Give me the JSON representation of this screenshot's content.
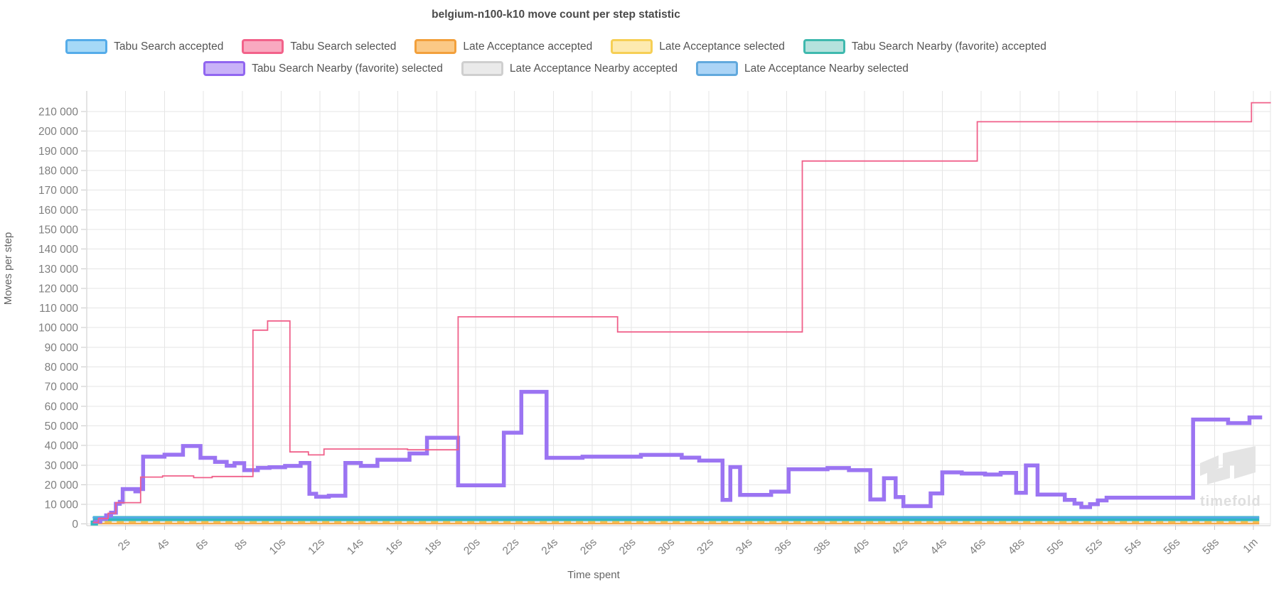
{
  "title": "belgium-n100-k10 move count per step statistic",
  "watermark": {
    "text": "timefold"
  },
  "legend": {
    "rows": [
      [
        {
          "key": "ts_accepted",
          "label": "Tabu Search accepted",
          "fill": "#a6d9f7",
          "border": "#55ace9"
        },
        {
          "key": "ts_selected",
          "label": "Tabu Search selected",
          "fill": "#f9a9c0",
          "border": "#f2628a"
        },
        {
          "key": "la_accepted",
          "label": "Late Acceptance accepted",
          "fill": "#fbc986",
          "border": "#f2a03c"
        },
        {
          "key": "la_selected",
          "label": "Late Acceptance selected",
          "fill": "#fdeab0",
          "border": "#f6cf55"
        },
        {
          "key": "tsn_accepted",
          "label": "Tabu Search Nearby (favorite) accepted",
          "fill": "#b5e2dd",
          "border": "#3fb9ae"
        }
      ],
      [
        {
          "key": "tsn_selected",
          "label": "Tabu Search Nearby (favorite) selected",
          "fill": "#c9b2f8",
          "border": "#9166f0"
        },
        {
          "key": "lan_accepted",
          "label": "Late Acceptance Nearby accepted",
          "fill": "#eaeaea",
          "border": "#cfcfcf"
        },
        {
          "key": "lan_selected",
          "label": "Late Acceptance Nearby selected",
          "fill": "#abd4f6",
          "border": "#62a9dd"
        }
      ]
    ]
  },
  "axes": {
    "x": {
      "title": "Time spent",
      "min": 0,
      "max": 61,
      "ticks": [
        {
          "t": 2,
          "label": "2s"
        },
        {
          "t": 4,
          "label": "4s"
        },
        {
          "t": 6,
          "label": "6s"
        },
        {
          "t": 8,
          "label": "8s"
        },
        {
          "t": 10,
          "label": "10s"
        },
        {
          "t": 12,
          "label": "12s"
        },
        {
          "t": 14,
          "label": "14s"
        },
        {
          "t": 16,
          "label": "16s"
        },
        {
          "t": 18,
          "label": "18s"
        },
        {
          "t": 20,
          "label": "20s"
        },
        {
          "t": 22,
          "label": "22s"
        },
        {
          "t": 24,
          "label": "24s"
        },
        {
          "t": 26,
          "label": "26s"
        },
        {
          "t": 28,
          "label": "28s"
        },
        {
          "t": 30,
          "label": "30s"
        },
        {
          "t": 32,
          "label": "32s"
        },
        {
          "t": 34,
          "label": "34s"
        },
        {
          "t": 36,
          "label": "36s"
        },
        {
          "t": 38,
          "label": "38s"
        },
        {
          "t": 40,
          "label": "40s"
        },
        {
          "t": 42,
          "label": "42s"
        },
        {
          "t": 44,
          "label": "44s"
        },
        {
          "t": 46,
          "label": "46s"
        },
        {
          "t": 48,
          "label": "48s"
        },
        {
          "t": 50,
          "label": "50s"
        },
        {
          "t": 52,
          "label": "52s"
        },
        {
          "t": 54,
          "label": "54s"
        },
        {
          "t": 56,
          "label": "56s"
        },
        {
          "t": 58,
          "label": "58s"
        },
        {
          "t": 60,
          "label": "1m"
        }
      ]
    },
    "y": {
      "title": "Moves per step",
      "min": 0,
      "max": 220000,
      "ticks": [
        {
          "v": 0,
          "label": "0"
        },
        {
          "v": 10000,
          "label": "10 000"
        },
        {
          "v": 20000,
          "label": "20 000"
        },
        {
          "v": 30000,
          "label": "30 000"
        },
        {
          "v": 40000,
          "label": "40 000"
        },
        {
          "v": 50000,
          "label": "50 000"
        },
        {
          "v": 60000,
          "label": "60 000"
        },
        {
          "v": 70000,
          "label": "70 000"
        },
        {
          "v": 80000,
          "label": "80 000"
        },
        {
          "v": 90000,
          "label": "90 000"
        },
        {
          "v": 100000,
          "label": "100 000"
        },
        {
          "v": 110000,
          "label": "110 000"
        },
        {
          "v": 120000,
          "label": "120 000"
        },
        {
          "v": 130000,
          "label": "130 000"
        },
        {
          "v": 140000,
          "label": "140 000"
        },
        {
          "v": 150000,
          "label": "150 000"
        },
        {
          "v": 160000,
          "label": "160 000"
        },
        {
          "v": 170000,
          "label": "170 000"
        },
        {
          "v": 180000,
          "label": "180 000"
        },
        {
          "v": 190000,
          "label": "190 000"
        },
        {
          "v": 200000,
          "label": "200 000"
        },
        {
          "v": 210000,
          "label": "210 000"
        }
      ]
    }
  },
  "chart_data": {
    "type": "line",
    "subtype": "step-after",
    "title": "belgium-n100-k10 move count per step statistic",
    "xlabel": "Time spent",
    "ylabel": "Moves per step",
    "x_unit": "seconds",
    "xlim": [
      0,
      61
    ],
    "ylim": [
      0,
      220000
    ],
    "grid": true,
    "legend_position": "top",
    "series": [
      {
        "key": "lan_accepted",
        "name": "Late Acceptance Nearby accepted",
        "color": "#dcdcdc",
        "width": 2,
        "points": [
          [
            0.3,
            1500
          ],
          [
            60.3,
            1500
          ]
        ]
      },
      {
        "key": "ts_accepted",
        "name": "Tabu Search accepted",
        "color": "#a8d8f5",
        "width": 2.5,
        "points": [
          [
            0.3,
            2000
          ],
          [
            60.3,
            2000
          ]
        ]
      },
      {
        "key": "la_selected",
        "name": "Late Acceptance selected",
        "color": "#f6c44f",
        "width": 2.5,
        "dash": "10 7",
        "points": [
          [
            0.3,
            1100
          ],
          [
            60.3,
            1100
          ]
        ]
      },
      {
        "key": "la_accepted",
        "name": "Late Acceptance accepted",
        "color": "#f4a94a",
        "width": 2.5,
        "points": [
          [
            0.25,
            250
          ],
          [
            60.3,
            250
          ]
        ]
      },
      {
        "key": "tsn_accepted",
        "name": "Tabu Search Nearby (favorite) accepted",
        "color": "#30b8c0",
        "width": 7,
        "points": [
          [
            0.2,
            500
          ],
          [
            0.45,
            2800
          ],
          [
            60.3,
            2800
          ]
        ]
      },
      {
        "key": "lan_selected",
        "name": "Late Acceptance Nearby selected",
        "color": "#58a8e8",
        "width": 2.5,
        "points": [
          [
            0.3,
            3300
          ],
          [
            60.3,
            3300
          ]
        ]
      },
      {
        "key": "tsn_selected",
        "name": "Tabu Search Nearby (favorite) selected",
        "color": "#9b74f2",
        "width": 5.5,
        "points": [
          [
            0.35,
            1200
          ],
          [
            0.7,
            2600
          ],
          [
            1.0,
            4400
          ],
          [
            1.25,
            5800
          ],
          [
            1.5,
            10300
          ],
          [
            1.7,
            11300
          ],
          [
            1.85,
            17800
          ],
          [
            2.5,
            16600
          ],
          [
            2.65,
            17800
          ],
          [
            2.9,
            34300
          ],
          [
            4.0,
            35300
          ],
          [
            4.95,
            39700
          ],
          [
            5.85,
            33700
          ],
          [
            6.6,
            31600
          ],
          [
            7.2,
            29700
          ],
          [
            7.6,
            31000
          ],
          [
            8.1,
            27400
          ],
          [
            8.8,
            28600
          ],
          [
            9.4,
            28900
          ],
          [
            10.2,
            29600
          ],
          [
            11.0,
            31100
          ],
          [
            11.45,
            15400
          ],
          [
            11.8,
            13900
          ],
          [
            12.45,
            14400
          ],
          [
            13.3,
            31100
          ],
          [
            14.1,
            29600
          ],
          [
            14.95,
            32700
          ],
          [
            16.6,
            35900
          ],
          [
            17.5,
            43900
          ],
          [
            19.1,
            19700
          ],
          [
            21.45,
            46500
          ],
          [
            22.35,
            67300
          ],
          [
            23.65,
            33700
          ],
          [
            25.5,
            34300
          ],
          [
            28.5,
            35200
          ],
          [
            30.6,
            33800
          ],
          [
            31.5,
            32300
          ],
          [
            32.7,
            12300
          ],
          [
            33.1,
            29000
          ],
          [
            33.6,
            14800
          ],
          [
            35.2,
            16500
          ],
          [
            36.1,
            27900
          ],
          [
            38.1,
            28500
          ],
          [
            39.2,
            27400
          ],
          [
            40.3,
            12500
          ],
          [
            41.0,
            23300
          ],
          [
            41.6,
            13700
          ],
          [
            42.0,
            9100
          ],
          [
            43.4,
            15600
          ],
          [
            44.0,
            26300
          ],
          [
            45.0,
            25700
          ],
          [
            46.2,
            25200
          ],
          [
            47.0,
            26000
          ],
          [
            47.8,
            15900
          ],
          [
            48.3,
            29800
          ],
          [
            48.9,
            15000
          ],
          [
            50.3,
            12300
          ],
          [
            50.8,
            10400
          ],
          [
            51.15,
            8600
          ],
          [
            51.6,
            10100
          ],
          [
            52.0,
            12000
          ],
          [
            52.45,
            13400
          ],
          [
            56.9,
            53200
          ],
          [
            58.7,
            51400
          ],
          [
            59.8,
            54300
          ],
          [
            60.45,
            54300
          ]
        ]
      },
      {
        "key": "ts_selected",
        "name": "Tabu Search selected",
        "color": "#f0608a",
        "width": 1.8,
        "points": [
          [
            0.3,
            800
          ],
          [
            0.6,
            2800
          ],
          [
            1.1,
            5500
          ],
          [
            1.5,
            10900
          ],
          [
            2.77,
            23900
          ],
          [
            3.9,
            24500
          ],
          [
            5.5,
            23600
          ],
          [
            6.45,
            24200
          ],
          [
            8.55,
            98700
          ],
          [
            9.3,
            103400
          ],
          [
            10.45,
            36700
          ],
          [
            11.4,
            35200
          ],
          [
            12.2,
            38200
          ],
          [
            16.5,
            37800
          ],
          [
            19.1,
            105500
          ],
          [
            27.3,
            97800
          ],
          [
            36.8,
            184800
          ],
          [
            45.8,
            204800
          ],
          [
            59.9,
            214500
          ],
          [
            60.9,
            214500
          ]
        ]
      }
    ]
  }
}
